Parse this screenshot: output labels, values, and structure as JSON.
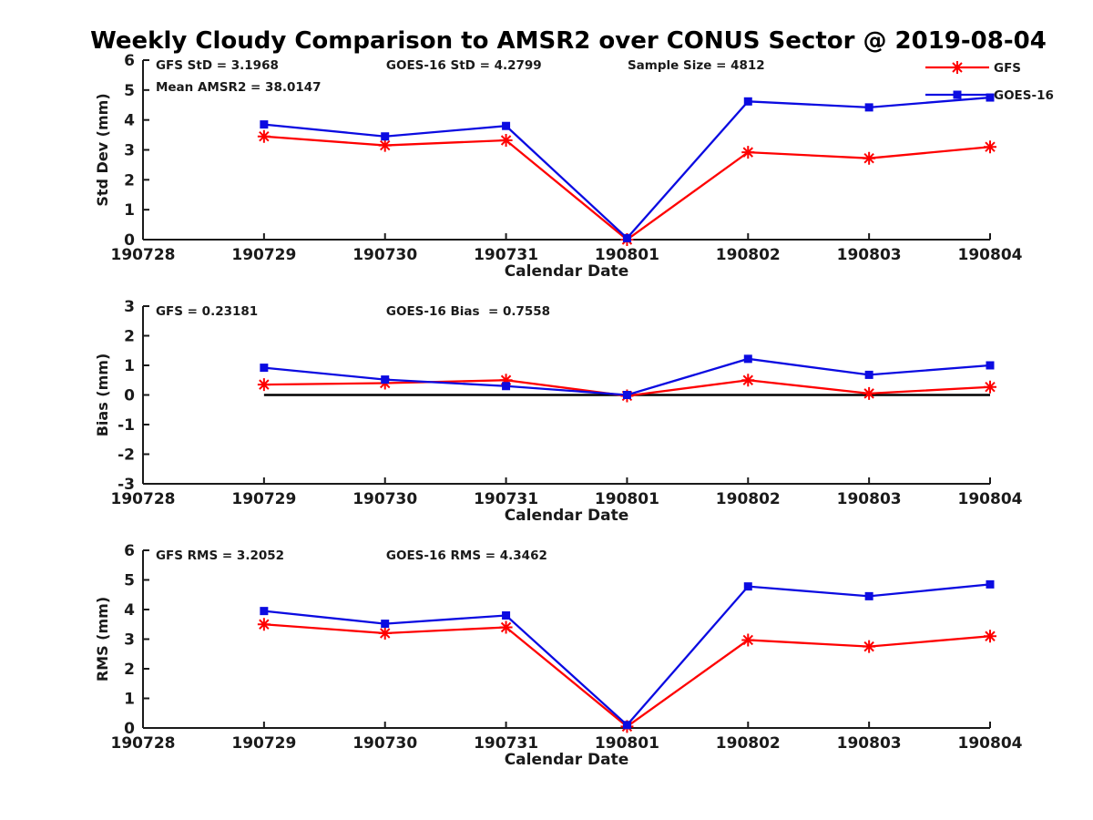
{
  "title": "Weekly Cloudy Comparison to AMSR2 over CONUS Sector @ 2019-08-04",
  "colors": {
    "gfs": "#fe0000",
    "goes16": "#0b0be1",
    "axis": "#1a1a1a",
    "zero_line": "#000000",
    "background": "#ffffff"
  },
  "x_axis": {
    "label": "Calendar Date",
    "tick_labels": [
      "190728",
      "190729",
      "190730",
      "190731",
      "190801",
      "190802",
      "190803",
      "190804"
    ]
  },
  "legend": {
    "position": "top-right-of-first-subplot",
    "entries": [
      {
        "label": "GFS",
        "marker": "asterisk",
        "color": "#fe0000"
      },
      {
        "label": "GOES-16",
        "marker": "square",
        "color": "#0b0be1"
      }
    ]
  },
  "chart_data": [
    {
      "type": "line",
      "ylabel": "Std Dev (mm)",
      "xlabel": "Calendar Date",
      "ylim": [
        0,
        6
      ],
      "yticks": [
        0,
        1,
        2,
        3,
        4,
        5,
        6
      ],
      "grid": false,
      "x_indices": [
        1,
        2,
        3,
        4,
        5,
        6,
        7
      ],
      "x_categories": [
        "190729",
        "190730",
        "190731",
        "190801",
        "190802",
        "190803",
        "190804"
      ],
      "series": [
        {
          "name": "GFS",
          "color": "#fe0000",
          "marker": "asterisk",
          "values": [
            3.45,
            3.15,
            3.32,
            0.0,
            2.92,
            2.72,
            3.1
          ]
        },
        {
          "name": "GOES-16",
          "color": "#0b0be1",
          "marker": "square",
          "values": [
            3.85,
            3.45,
            3.8,
            0.05,
            4.62,
            4.42,
            4.75
          ]
        }
      ],
      "annotations": [
        {
          "text": "GFS StD = 3.1968",
          "xfrac": 0.015,
          "row": 0
        },
        {
          "text": "Mean AMSR2 = 38.0147",
          "xfrac": 0.015,
          "row": 1
        },
        {
          "text": "GOES-16 StD = 4.2799",
          "xfrac": 0.287,
          "row": 0
        },
        {
          "text": "Sample Size = 4812",
          "xfrac": 0.572,
          "row": 0
        }
      ],
      "legend": true,
      "zero_line": false
    },
    {
      "type": "line",
      "ylabel": "Bias (mm)",
      "xlabel": "Calendar Date",
      "ylim": [
        -3,
        3
      ],
      "yticks": [
        -3,
        -2,
        -1,
        0,
        1,
        2,
        3
      ],
      "grid": false,
      "x_indices": [
        1,
        2,
        3,
        4,
        5,
        6,
        7
      ],
      "x_categories": [
        "190729",
        "190730",
        "190731",
        "190801",
        "190802",
        "190803",
        "190804"
      ],
      "series": [
        {
          "name": "GFS",
          "color": "#fe0000",
          "marker": "asterisk",
          "values": [
            0.35,
            0.4,
            0.5,
            -0.03,
            0.5,
            0.05,
            0.27
          ]
        },
        {
          "name": "GOES-16",
          "color": "#0b0be1",
          "marker": "square",
          "values": [
            0.92,
            0.52,
            0.3,
            0.0,
            1.22,
            0.68,
            1.0
          ]
        }
      ],
      "annotations": [
        {
          "text": "GFS = 0.23181",
          "xfrac": 0.015,
          "row": 0
        },
        {
          "text": "GOES-16 Bias  = 0.7558",
          "xfrac": 0.287,
          "row": 0
        }
      ],
      "legend": false,
      "zero_line": true
    },
    {
      "type": "line",
      "ylabel": "RMS (mm)",
      "xlabel": "Calendar Date",
      "ylim": [
        0,
        6
      ],
      "yticks": [
        0,
        1,
        2,
        3,
        4,
        5,
        6
      ],
      "grid": false,
      "x_indices": [
        1,
        2,
        3,
        4,
        5,
        6,
        7
      ],
      "x_categories": [
        "190729",
        "190730",
        "190731",
        "190801",
        "190802",
        "190803",
        "190804"
      ],
      "series": [
        {
          "name": "GFS",
          "color": "#fe0000",
          "marker": "asterisk",
          "values": [
            3.5,
            3.2,
            3.4,
            0.05,
            2.97,
            2.75,
            3.1
          ]
        },
        {
          "name": "GOES-16",
          "color": "#0b0be1",
          "marker": "square",
          "values": [
            3.95,
            3.52,
            3.8,
            0.1,
            4.78,
            4.45,
            4.85
          ]
        }
      ],
      "annotations": [
        {
          "text": "GFS RMS = 3.2052",
          "xfrac": 0.015,
          "row": 0
        },
        {
          "text": "GOES-16 RMS = 4.3462",
          "xfrac": 0.287,
          "row": 0
        }
      ],
      "legend": false,
      "zero_line": false
    }
  ]
}
